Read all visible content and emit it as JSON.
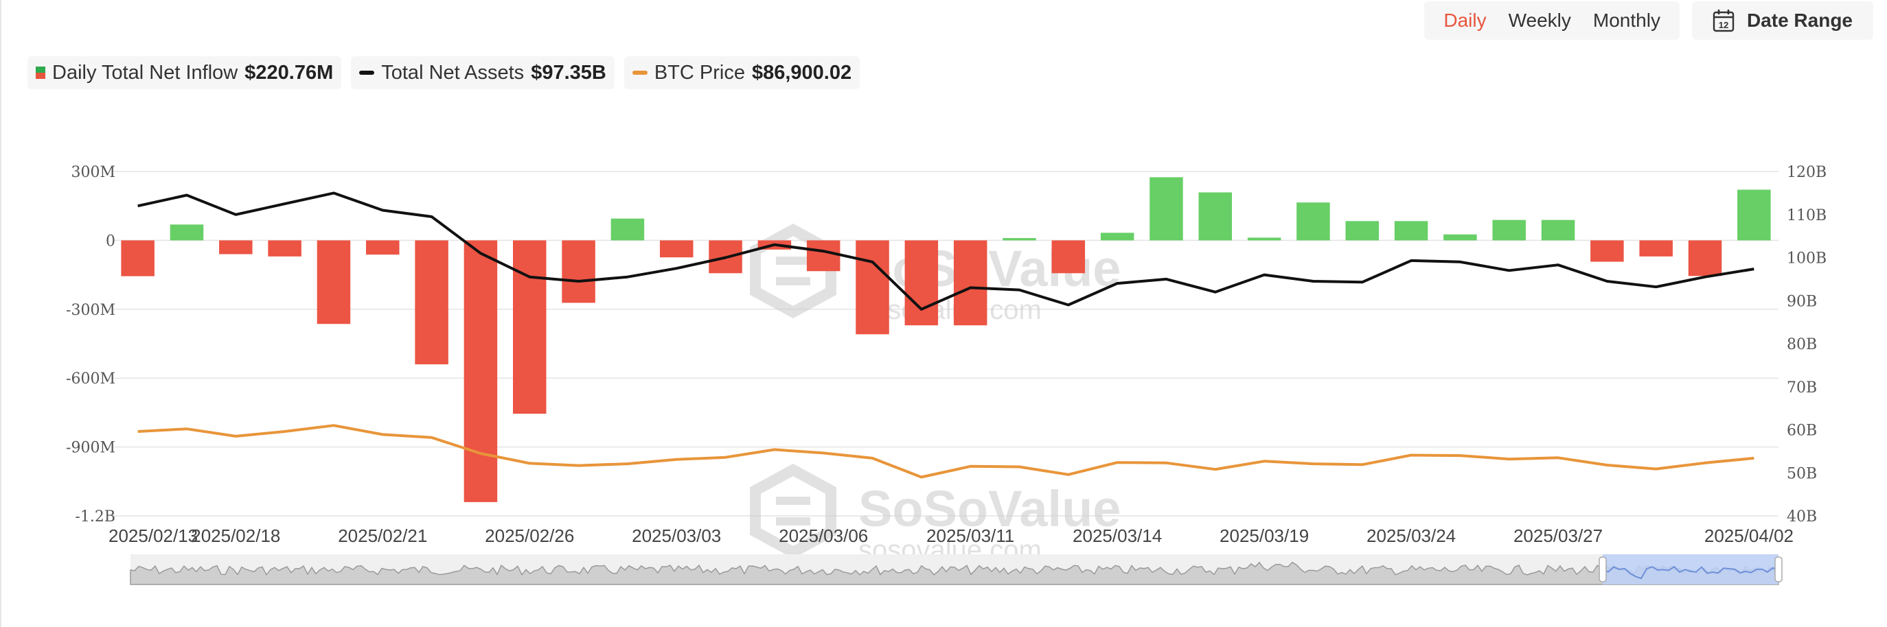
{
  "toolbar": {
    "tabs": [
      {
        "label": "Daily",
        "active": true
      },
      {
        "label": "Weekly",
        "active": false
      },
      {
        "label": "Monthly",
        "active": false
      }
    ],
    "date_range_label": "Date Range",
    "calendar_icon_text": "12"
  },
  "legend": {
    "inflow_label": "Daily Total Net Inflow",
    "inflow_value": "$220.76M",
    "assets_label": "Total Net Assets",
    "assets_value": "$97.35B",
    "btc_label": "BTC Price",
    "btc_value": "$86,900.02"
  },
  "watermark": {
    "brand": "SoSoValue",
    "site": "sosovalue.com"
  },
  "colors": {
    "inflow_positive": "#67cf66",
    "inflow_negative": "#ec5444",
    "assets_line": "#111111",
    "btc_line": "#e8953a",
    "accent": "#e8553e",
    "navigator_window": "#bcd0f7"
  },
  "chart_data": {
    "type": "bar",
    "title": "",
    "categories": [
      "2025/02/13",
      "2025/02/14",
      "2025/02/18",
      "2025/02/19",
      "2025/02/20",
      "2025/02/21",
      "2025/02/24",
      "2025/02/25",
      "2025/02/26",
      "2025/02/27",
      "2025/02/28",
      "2025/03/03",
      "2025/03/04",
      "2025/03/05",
      "2025/03/06",
      "2025/03/07",
      "2025/03/10",
      "2025/03/11",
      "2025/03/12",
      "2025/03/13",
      "2025/03/14",
      "2025/03/17",
      "2025/03/18",
      "2025/03/19",
      "2025/03/20",
      "2025/03/21",
      "2025/03/24",
      "2025/03/25",
      "2025/03/26",
      "2025/03/27",
      "2025/03/28",
      "2025/03/31",
      "2025/04/01",
      "2025/04/02"
    ],
    "x_tick_labels": [
      {
        "index": 0,
        "label": "2025/02/13"
      },
      {
        "index": 2,
        "label": "2025/02/18"
      },
      {
        "index": 5,
        "label": "2025/02/21"
      },
      {
        "index": 8,
        "label": "2025/02/26"
      },
      {
        "index": 11,
        "label": "2025/03/03"
      },
      {
        "index": 14,
        "label": "2025/03/06"
      },
      {
        "index": 17,
        "label": "2025/03/11"
      },
      {
        "index": 20,
        "label": "2025/03/14"
      },
      {
        "index": 23,
        "label": "2025/03/19"
      },
      {
        "index": 26,
        "label": "2025/03/24"
      },
      {
        "index": 29,
        "label": "2025/03/27"
      },
      {
        "index": 33,
        "label": "2025/04/02"
      }
    ],
    "series": [
      {
        "name": "Daily Total Net Inflow",
        "type": "bar",
        "axis": "left",
        "values": [
          -156,
          69,
          -60,
          -70,
          -364,
          -62,
          -540,
          -1140,
          -755,
          -272,
          95,
          -74,
          -143,
          -40,
          -134,
          -409,
          -370,
          -370,
          10,
          -143,
          33,
          275,
          209,
          12,
          165,
          84,
          84,
          26,
          89,
          89,
          -93,
          -70,
          -155,
          220.76
        ]
      },
      {
        "name": "Total Net Assets",
        "type": "line",
        "axis": "right",
        "values": [
          112,
          114.5,
          110,
          112.5,
          115,
          111,
          109.5,
          101,
          95.5,
          94.5,
          95.5,
          97.5,
          100,
          103,
          101.5,
          99,
          88,
          93,
          92.5,
          89,
          94,
          95,
          92,
          96,
          94.5,
          94.3,
          99.3,
          99,
          97,
          98.3,
          94.5,
          93.2,
          95.5,
          97.35
        ]
      },
      {
        "name": "BTC Price",
        "type": "line",
        "axis": "right",
        "values": [
          59.6,
          60.2,
          58.5,
          59.6,
          61,
          58.9,
          58.2,
          54.5,
          52.2,
          51.7,
          52.1,
          53.1,
          53.6,
          55.4,
          54.6,
          53.4,
          49,
          51.5,
          51.4,
          49.6,
          52.4,
          52.3,
          50.8,
          52.7,
          52.1,
          51.9,
          54.1,
          54,
          53.2,
          53.5,
          51.8,
          50.9,
          52.3,
          53.4
        ]
      }
    ],
    "y_left": {
      "ticks": [
        "300M",
        "0",
        "-300M",
        "-600M",
        "-900M",
        "-1.2B"
      ],
      "values": [
        300,
        0,
        -300,
        -600,
        -900,
        -1200
      ],
      "unit": "M"
    },
    "y_right": {
      "ticks": [
        "120B",
        "110B",
        "100B",
        "90B",
        "80B",
        "70B",
        "60B",
        "50B",
        "40B"
      ],
      "values": [
        120,
        110,
        100,
        90,
        80,
        70,
        60,
        50,
        40
      ],
      "unit": "B"
    },
    "ylim_left": [
      -1200,
      300
    ],
    "ylim_right": [
      40,
      120
    ],
    "grid": true,
    "legend_position": "top-left"
  }
}
